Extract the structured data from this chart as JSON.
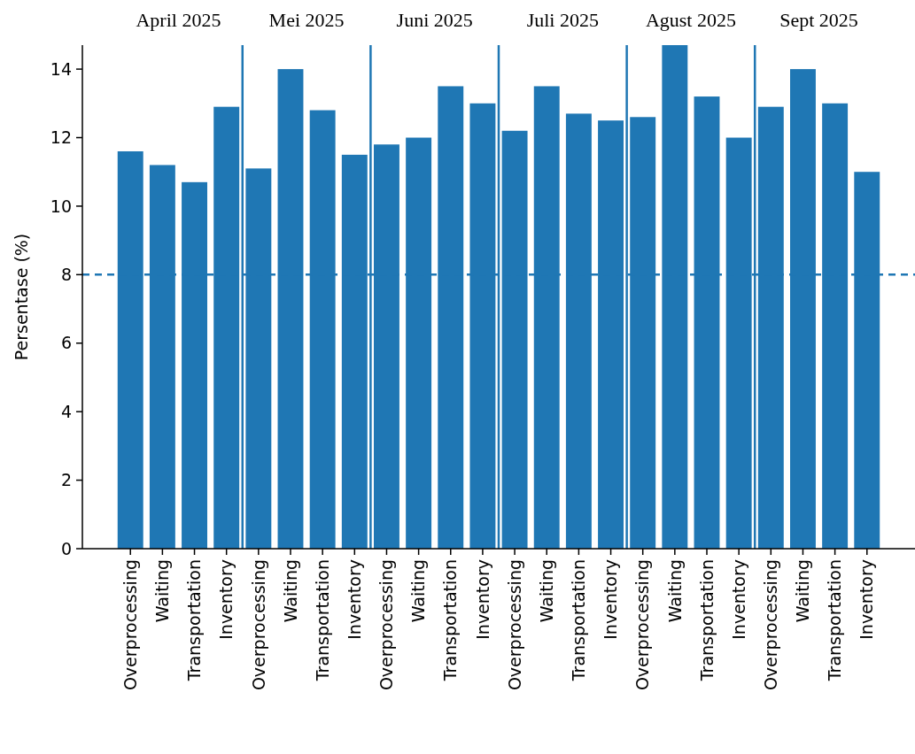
{
  "chart_data": {
    "type": "bar",
    "ylabel": "Persentase (%)",
    "categories": [
      "Overprocessing",
      "Waiting",
      "Transportation",
      "Inventory",
      "Overprocessing",
      "Waiting",
      "Transportation",
      "Inventory",
      "Overprocessing",
      "Waiting",
      "Transportation",
      "Inventory",
      "Overprocessing",
      "Waiting",
      "Transportation",
      "Inventory",
      "Overprocessing",
      "Waiting",
      "Transportation",
      "Inventory",
      "Overprocessing",
      "Waiting",
      "Transportation",
      "Inventory"
    ],
    "values": [
      11.6,
      11.2,
      10.7,
      12.9,
      11.1,
      14.0,
      12.8,
      11.5,
      11.8,
      12.0,
      13.5,
      13.0,
      12.2,
      13.5,
      12.7,
      12.5,
      12.6,
      14.7,
      13.2,
      12.0,
      12.9,
      14.0,
      13.0,
      11.0
    ],
    "color": "#1f77b4",
    "ylim": [
      0,
      14.7
    ],
    "yticks": [
      0,
      2,
      4,
      6,
      8,
      10,
      12,
      14
    ],
    "annotations": [
      "April 2025",
      "Mei 2025",
      "Juni 2025",
      "Juli 2025",
      "Agust 2025",
      "Sept 2025"
    ],
    "ref_lines": [
      {
        "axis": "y",
        "value": 8,
        "color": "#1f77b4",
        "line_style": "dashed"
      }
    ]
  }
}
